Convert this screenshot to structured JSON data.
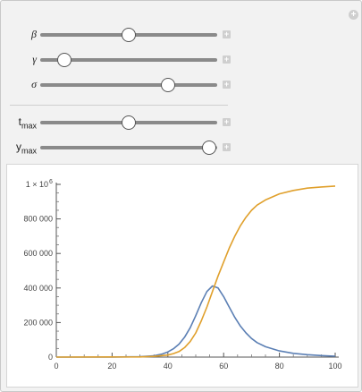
{
  "sliders": [
    {
      "id": "beta",
      "label": "β",
      "value": 0.5
    },
    {
      "id": "gamma",
      "label": "γ",
      "value": 0.135
    },
    {
      "id": "sigma",
      "label": "σ",
      "value": 0.72
    },
    {
      "id": "tmax",
      "label": "t",
      "sub": "max",
      "value": 0.5
    },
    {
      "id": "ymax",
      "label": "y",
      "sub": "max",
      "value": 0.955
    }
  ],
  "plus_symbol": "+",
  "chart_data": {
    "type": "line",
    "xlim": [
      0,
      100
    ],
    "ylim": [
      0,
      1000000
    ],
    "x_ticks": [
      "0",
      "20",
      "40",
      "60",
      "80",
      "100"
    ],
    "x_tick_values": [
      0,
      20,
      40,
      60,
      80,
      100
    ],
    "y_ticks": [
      "0",
      "200 000",
      "400 000",
      "600 000",
      "800 000"
    ],
    "y_tick_values": [
      0,
      200000,
      400000,
      600000,
      800000
    ],
    "y_top_label": "1 × 10",
    "y_top_exp": "6",
    "series": [
      {
        "color": "#5b7fb4",
        "x": [
          0,
          20,
          30,
          35,
          38,
          40,
          42,
          44,
          46,
          48,
          50,
          52,
          54,
          56,
          58,
          60,
          62,
          64,
          66,
          68,
          70,
          72,
          75,
          80,
          85,
          90,
          95,
          100
        ],
        "y": [
          0,
          200,
          2000,
          8000,
          18000,
          30000,
          48000,
          75000,
          115000,
          170000,
          240000,
          315000,
          380000,
          412000,
          400000,
          350000,
          290000,
          230000,
          180000,
          140000,
          108000,
          84000,
          60000,
          36000,
          22000,
          14000,
          9000,
          5000
        ]
      },
      {
        "color": "#e0a02c",
        "x": [
          0,
          30,
          35,
          40,
          42,
          44,
          46,
          48,
          50,
          52,
          54,
          56,
          58,
          60,
          62,
          64,
          66,
          68,
          70,
          72,
          75,
          80,
          85,
          90,
          95,
          100
        ],
        "y": [
          0,
          1000,
          4000,
          12000,
          20000,
          32000,
          55000,
          90000,
          140000,
          210000,
          290000,
          380000,
          470000,
          550000,
          630000,
          700000,
          760000,
          810000,
          850000,
          880000,
          910000,
          945000,
          965000,
          978000,
          985000,
          990000
        ]
      }
    ]
  }
}
